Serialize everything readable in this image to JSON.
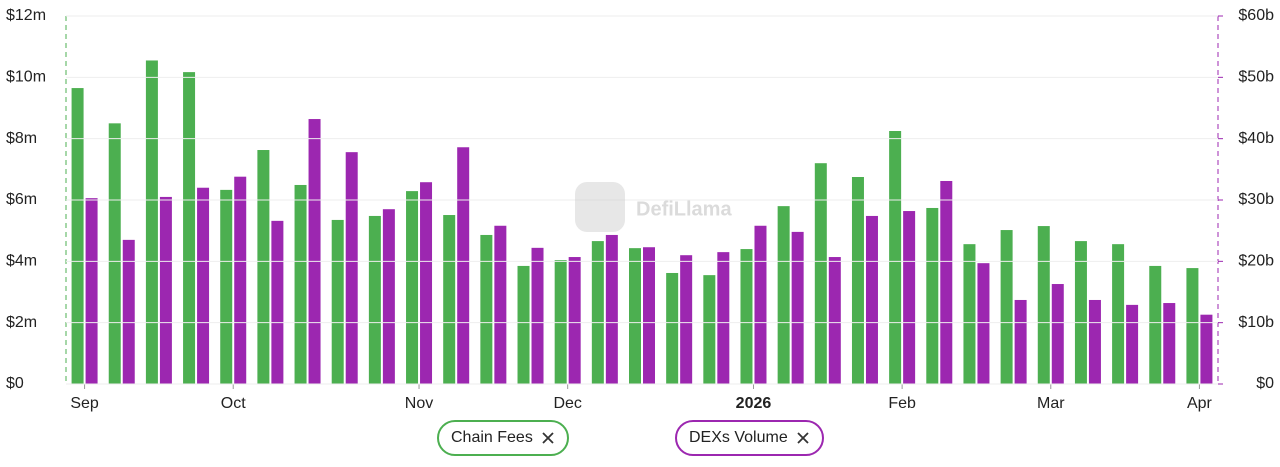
{
  "watermark": "DefiLlama",
  "chart_data": {
    "type": "bar",
    "categories": [
      "Sep",
      null,
      null,
      null,
      "Oct",
      null,
      null,
      null,
      null,
      "Nov",
      null,
      null,
      null,
      "Dec",
      null,
      null,
      null,
      null,
      "2026",
      null,
      null,
      null,
      "Feb",
      null,
      null,
      null,
      "Mar",
      null,
      null,
      null,
      "Apr"
    ],
    "series": [
      {
        "name": "Chain Fees",
        "color": "#4caf50",
        "axis": "y",
        "values": [
          9.65,
          8.5,
          10.55,
          10.17,
          6.33,
          7.63,
          6.49,
          5.35,
          5.48,
          6.29,
          5.51,
          4.86,
          3.85,
          4.04,
          4.66,
          4.43,
          3.62,
          3.55,
          4.4,
          5.8,
          7.2,
          6.75,
          8.25,
          5.74,
          4.56,
          5.02,
          5.15,
          4.66,
          4.56,
          3.85,
          3.78
        ]
      },
      {
        "name": "DEXs Volume",
        "color": "#9c27b0",
        "axis": "y2",
        "values": [
          30.3,
          23.5,
          30.5,
          32.0,
          33.8,
          26.6,
          43.2,
          37.8,
          28.5,
          32.9,
          38.6,
          25.8,
          22.2,
          20.7,
          24.3,
          22.3,
          21.0,
          21.5,
          25.8,
          24.8,
          20.7,
          27.4,
          28.2,
          33.1,
          19.7,
          13.7,
          16.3,
          13.7,
          12.9,
          13.2,
          11.3
        ]
      }
    ],
    "ylim": [
      0,
      12
    ],
    "yticks": [
      {
        "value": 0,
        "label": "$0"
      },
      {
        "value": 2,
        "label": "$2m"
      },
      {
        "value": 4,
        "label": "$4m"
      },
      {
        "value": 6,
        "label": "$6m"
      },
      {
        "value": 8,
        "label": "$8m"
      },
      {
        "value": 10,
        "label": "$10m"
      },
      {
        "value": 12,
        "label": "$12m"
      }
    ],
    "y2lim": [
      0,
      60
    ],
    "y2ticks": [
      {
        "value": 0,
        "label": "$0"
      },
      {
        "value": 10,
        "label": "$10b"
      },
      {
        "value": 20,
        "label": "$20b"
      },
      {
        "value": 30,
        "label": "$30b"
      },
      {
        "value": 40,
        "label": "$40b"
      },
      {
        "value": 50,
        "label": "$50b"
      },
      {
        "value": 60,
        "label": "$60b"
      }
    ],
    "grid": true
  }
}
